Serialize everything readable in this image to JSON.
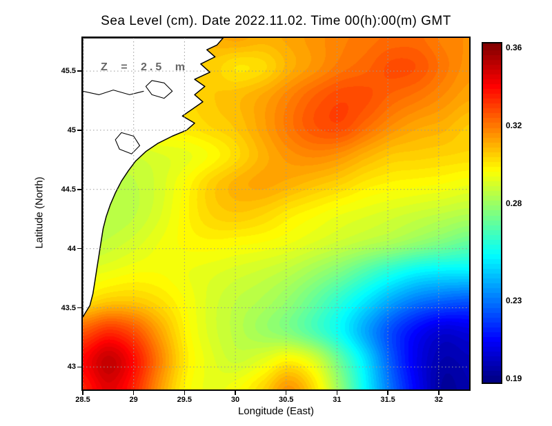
{
  "colors": {
    "grid": "#999999",
    "frame": "#000000",
    "land": "#ffffff",
    "coast": "#000000",
    "annotation": "#666666"
  },
  "chart_data": {
    "type": "heatmap",
    "title": "Sea Level (cm). Date 2022.11.02. Time 00(h):00(m) GMT",
    "annotation": "Z = 2.5 m",
    "xlabel": "Longitude (East)",
    "ylabel": "Latitude (North)",
    "x_ticks": [
      "28.5",
      "29",
      "29.5",
      "30",
      "30.5",
      "31",
      "31.5",
      "32"
    ],
    "y_ticks": [
      "43",
      "43.5",
      "44",
      "44.5",
      "45",
      "45.5"
    ],
    "xlim": [
      28.5,
      32.3
    ],
    "ylim": [
      42.81,
      45.78
    ],
    "grid": true,
    "colorbar": {
      "labels": [
        "0.36",
        "0.32",
        "0.28",
        "0.23",
        "0.19"
      ],
      "vmin": 0.188,
      "vmax": 0.362,
      "colormap": "jet"
    },
    "lon": [
      28.5,
      28.75,
      29.01,
      29.26,
      29.51,
      29.77,
      30.02,
      30.27,
      30.53,
      30.78,
      31.03,
      31.28,
      31.54,
      31.79,
      32.04,
      32.3
    ],
    "lat": [
      45.78,
      45.53,
      45.28,
      45.04,
      44.79,
      44.54,
      44.29,
      44.05,
      43.8,
      43.55,
      43.3,
      43.06,
      42.81
    ],
    "values": [
      [
        0.3,
        0.3,
        0.3,
        0.3,
        0.305,
        0.31,
        0.312,
        0.31,
        0.312,
        0.315,
        0.318,
        0.32,
        0.322,
        0.322,
        0.318,
        0.316
      ],
      [
        0.3,
        0.3,
        0.3,
        0.3,
        0.302,
        0.305,
        0.301,
        0.303,
        0.31,
        0.315,
        0.32,
        0.323,
        0.327,
        0.326,
        0.32,
        0.315
      ],
      [
        0.3,
        0.3,
        0.3,
        0.301,
        0.303,
        0.306,
        0.308,
        0.312,
        0.318,
        0.324,
        0.328,
        0.327,
        0.323,
        0.32,
        0.316,
        0.312
      ],
      [
        0.298,
        0.298,
        0.298,
        0.3,
        0.301,
        0.304,
        0.307,
        0.313,
        0.32,
        0.326,
        0.328,
        0.322,
        0.316,
        0.312,
        0.31,
        0.306
      ],
      [
        0.29,
        0.289,
        0.289,
        0.291,
        0.293,
        0.297,
        0.303,
        0.31,
        0.315,
        0.317,
        0.315,
        0.31,
        0.306,
        0.305,
        0.304,
        0.303
      ],
      [
        0.286,
        0.285,
        0.286,
        0.29,
        0.297,
        0.305,
        0.31,
        0.312,
        0.31,
        0.307,
        0.304,
        0.3,
        0.298,
        0.297,
        0.296,
        0.294
      ],
      [
        0.284,
        0.284,
        0.286,
        0.291,
        0.298,
        0.304,
        0.306,
        0.304,
        0.3,
        0.297,
        0.294,
        0.292,
        0.29,
        0.288,
        0.286,
        0.284
      ],
      [
        0.285,
        0.287,
        0.29,
        0.294,
        0.297,
        0.298,
        0.297,
        0.296,
        0.294,
        0.291,
        0.288,
        0.285,
        0.282,
        0.278,
        0.274,
        0.27
      ],
      [
        0.292,
        0.294,
        0.296,
        0.296,
        0.294,
        0.292,
        0.29,
        0.288,
        0.285,
        0.28,
        0.274,
        0.266,
        0.258,
        0.252,
        0.25,
        0.25
      ],
      [
        0.302,
        0.306,
        0.306,
        0.302,
        0.296,
        0.29,
        0.286,
        0.283,
        0.278,
        0.27,
        0.26,
        0.249,
        0.238,
        0.23,
        0.226,
        0.224
      ],
      [
        0.325,
        0.332,
        0.326,
        0.312,
        0.298,
        0.29,
        0.285,
        0.28,
        0.275,
        0.266,
        0.254,
        0.238,
        0.222,
        0.21,
        0.203,
        0.205
      ],
      [
        0.34,
        0.35,
        0.338,
        0.318,
        0.3,
        0.292,
        0.288,
        0.292,
        0.298,
        0.29,
        0.27,
        0.248,
        0.224,
        0.206,
        0.196,
        0.198
      ],
      [
        0.335,
        0.345,
        0.334,
        0.314,
        0.298,
        0.293,
        0.296,
        0.304,
        0.315,
        0.302,
        0.278,
        0.252,
        0.228,
        0.208,
        0.193,
        0.196
      ]
    ],
    "coastline": [
      [
        29.88,
        45.78
      ],
      [
        29.82,
        45.72
      ],
      [
        29.72,
        45.68
      ],
      [
        29.8,
        45.62
      ],
      [
        29.66,
        45.56
      ],
      [
        29.75,
        45.49
      ],
      [
        29.6,
        45.43
      ],
      [
        29.7,
        45.37
      ],
      [
        29.6,
        45.3
      ],
      [
        29.68,
        45.24
      ],
      [
        29.58,
        45.18
      ],
      [
        29.48,
        45.12
      ],
      [
        29.6,
        45.06
      ],
      [
        29.52,
        45.0
      ],
      [
        29.38,
        44.95
      ],
      [
        29.24,
        44.89
      ],
      [
        29.12,
        44.82
      ],
      [
        29.02,
        44.74
      ],
      [
        28.95,
        44.66
      ],
      [
        28.88,
        44.57
      ],
      [
        28.82,
        44.47
      ],
      [
        28.77,
        44.37
      ],
      [
        28.73,
        44.27
      ],
      [
        28.7,
        44.17
      ],
      [
        28.68,
        44.06
      ],
      [
        28.66,
        43.95
      ],
      [
        28.64,
        43.84
      ],
      [
        28.62,
        43.73
      ],
      [
        28.6,
        43.62
      ],
      [
        28.57,
        43.52
      ],
      [
        28.52,
        43.45
      ],
      [
        28.5,
        43.42
      ]
    ],
    "lakes": [
      [
        [
          29.18,
          45.42
        ],
        [
          29.3,
          45.4
        ],
        [
          29.38,
          45.33
        ],
        [
          29.3,
          45.27
        ],
        [
          29.18,
          45.3
        ],
        [
          29.12,
          45.37
        ]
      ],
      [
        [
          28.88,
          44.98
        ],
        [
          29.0,
          44.95
        ],
        [
          29.06,
          44.87
        ],
        [
          28.98,
          44.8
        ],
        [
          28.86,
          44.84
        ],
        [
          28.82,
          44.92
        ]
      ]
    ],
    "rivers": [
      [
        [
          28.5,
          45.33
        ],
        [
          28.66,
          45.3
        ],
        [
          28.8,
          45.34
        ],
        [
          28.96,
          45.3
        ],
        [
          29.1,
          45.33
        ]
      ]
    ]
  }
}
